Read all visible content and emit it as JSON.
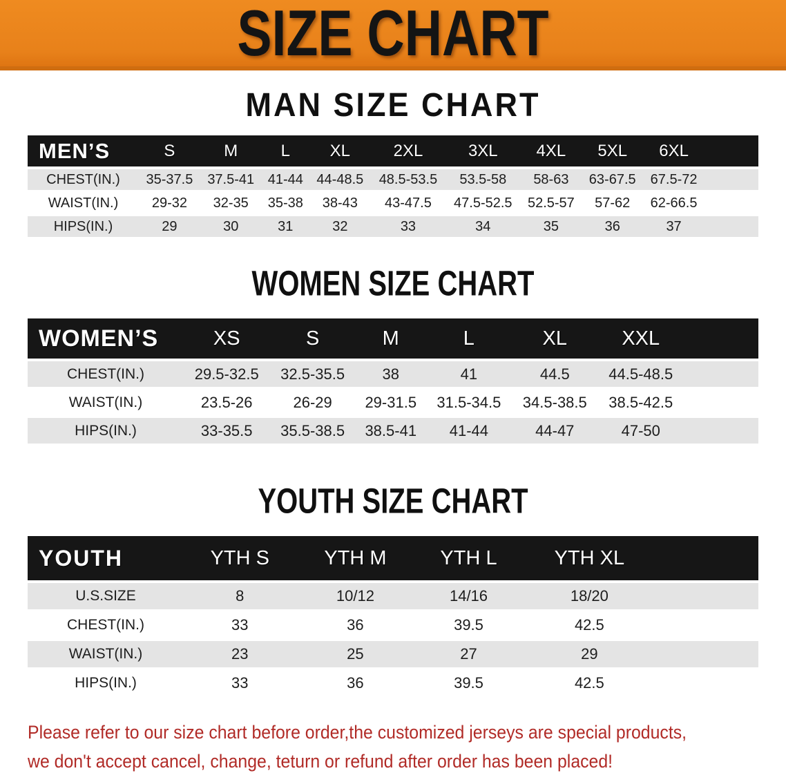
{
  "banner": {
    "title": "SIZE CHART",
    "background_color": "#e8811a",
    "text_color": "#141414"
  },
  "sections": [
    {
      "title": "MAN SIZE CHART"
    },
    {
      "title": "WOMEN SIZE CHART"
    },
    {
      "title": "YOUTH SIZE CHART"
    }
  ],
  "tables": [
    {
      "id": "mens",
      "header_label": "MEN’S",
      "columns": [
        "S",
        "M",
        "L",
        "XL",
        "2XL",
        "3XL",
        "4XL",
        "5XL",
        "6XL"
      ],
      "rows": [
        {
          "label": "CHEST(IN.)",
          "values": [
            "35-37.5",
            "37.5-41",
            "41-44",
            "44-48.5",
            "48.5-53.5",
            "53.5-58",
            "58-63",
            "63-67.5",
            "67.5-72"
          ]
        },
        {
          "label": "WAIST(IN.)",
          "values": [
            "29-32",
            "32-35",
            "35-38",
            "38-43",
            "43-47.5",
            "47.5-52.5",
            "52.5-57",
            "57-62",
            "62-66.5"
          ]
        },
        {
          "label": "HIPS(IN.)",
          "values": [
            "29",
            "30",
            "31",
            "32",
            "33",
            "34",
            "35",
            "36",
            "37"
          ]
        }
      ]
    },
    {
      "id": "womens",
      "header_label": "WOMEN’S",
      "columns": [
        "XS",
        "S",
        "M",
        "L",
        "XL",
        "XXL"
      ],
      "rows": [
        {
          "label": "CHEST(IN.)",
          "values": [
            "29.5-32.5",
            "32.5-35.5",
            "38",
            "41",
            "44.5",
            "44.5-48.5"
          ]
        },
        {
          "label": "WAIST(IN.)",
          "values": [
            "23.5-26",
            "26-29",
            "29-31.5",
            "31.5-34.5",
            "34.5-38.5",
            "38.5-42.5"
          ]
        },
        {
          "label": "HIPS(IN.)",
          "values": [
            "33-35.5",
            "35.5-38.5",
            "38.5-41",
            "41-44",
            "44-47",
            "47-50"
          ]
        }
      ]
    },
    {
      "id": "youth",
      "header_label": "YOUTH",
      "columns": [
        "YTH S",
        "YTH M",
        "YTH L",
        "YTH XL"
      ],
      "rows": [
        {
          "label": "U.S.SIZE",
          "values": [
            "8",
            "10/12",
            "14/16",
            "18/20"
          ]
        },
        {
          "label": "CHEST(IN.)",
          "values": [
            "33",
            "36",
            "39.5",
            "42.5"
          ]
        },
        {
          "label": "WAIST(IN.)",
          "values": [
            "23",
            "25",
            "27",
            "29"
          ]
        },
        {
          "label": "HIPS(IN.)",
          "values": [
            "33",
            "36",
            "39.5",
            "42.5"
          ]
        }
      ]
    }
  ],
  "disclaimer": {
    "line1": "Please refer to our size chart before order,the customized jerseys are special products,",
    "line2": "we don't accept cancel, change, teturn or refund after order has been placed!",
    "text_color": "#b12b27"
  },
  "colors": {
    "banner_orange": "#e8811a",
    "banner_border": "#cf6d10",
    "table_header_black": "#161616",
    "row_shaded_gray": "#e4e4e4",
    "row_plain_white": "#ffffff",
    "disclaimer_red": "#b12b27"
  }
}
